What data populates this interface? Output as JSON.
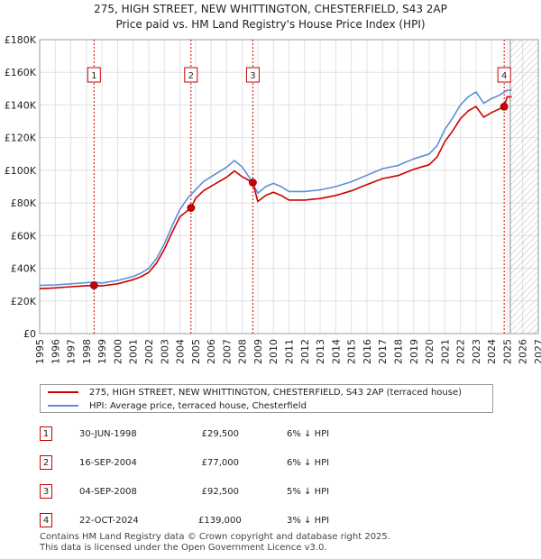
{
  "title_line1": "275, HIGH STREET, NEW WHITTINGTON, CHESTERFIELD, S43 2AP",
  "title_line2": "Price paid vs. HM Land Registry's House Price Index (HPI)",
  "legend": {
    "property_label": "275, HIGH STREET, NEW WHITTINGTON, CHESTERFIELD, S43 2AP (terraced house)",
    "hpi_label": "HPI: Average price, terraced house, Chesterfield"
  },
  "colors": {
    "property": "#cc0000",
    "hpi": "#5b8fd6",
    "shade": "#dde6f5",
    "grid": "#e2e2e2"
  },
  "sales": [
    {
      "id": "1",
      "date": "30-JUN-1998",
      "price": "£29,500",
      "hpi_diff": "6% ↓ HPI"
    },
    {
      "id": "2",
      "date": "16-SEP-2004",
      "price": "£77,000",
      "hpi_diff": "6% ↓ HPI"
    },
    {
      "id": "3",
      "date": "04-SEP-2008",
      "price": "£92,500",
      "hpi_diff": "5% ↓ HPI"
    },
    {
      "id": "4",
      "date": "22-OCT-2024",
      "price": "£139,000",
      "hpi_diff": "3% ↓ HPI"
    }
  ],
  "footer_line1": "Contains HM Land Registry data © Crown copyright and database right 2025.",
  "footer_line2": "This data is licensed under the Open Government Licence v3.0.",
  "chart_data": {
    "type": "line",
    "title": "275, HIGH STREET, NEW WHITTINGTON, CHESTERFIELD, S43 2AP — Price paid vs. HM Land Registry's House Price Index (HPI)",
    "xlabel": "",
    "ylabel": "",
    "xlim": [
      1995,
      2027
    ],
    "ylim": [
      0,
      180000
    ],
    "y_ticks": [
      0,
      20000,
      40000,
      60000,
      80000,
      100000,
      120000,
      140000,
      160000,
      180000
    ],
    "y_tick_labels": [
      "£0",
      "£20K",
      "£40K",
      "£60K",
      "£80K",
      "£100K",
      "£120K",
      "£140K",
      "£160K",
      "£180K"
    ],
    "x_ticks": [
      1995,
      1996,
      1997,
      1998,
      1999,
      2000,
      2001,
      2002,
      2003,
      2004,
      2005,
      2006,
      2007,
      2008,
      2009,
      2010,
      2011,
      2012,
      2013,
      2014,
      2015,
      2016,
      2017,
      2018,
      2019,
      2020,
      2021,
      2022,
      2023,
      2024,
      2025,
      2026,
      2027
    ],
    "future_hatch_from": 2025.2,
    "series": [
      {
        "name": "HPI: Average price, terraced house, Chesterfield",
        "x": [
          1995,
          1996,
          1997,
          1998,
          1998.5,
          1999,
          2000,
          2001,
          2001.5,
          2002,
          2002.5,
          2003,
          2003.5,
          2004,
          2004.5,
          2005,
          2005.5,
          2006,
          2006.5,
          2007,
          2007.5,
          2008,
          2008.5,
          2009,
          2009.5,
          2010,
          2010.5,
          2011,
          2012,
          2013,
          2014,
          2015,
          2016,
          2017,
          2018,
          2019,
          2020,
          2020.5,
          2021,
          2021.5,
          2022,
          2022.5,
          2023,
          2023.5,
          2024,
          2024.5,
          2025,
          2025.3
        ],
        "y": [
          29500,
          29800,
          30500,
          31200,
          31500,
          31000,
          32500,
          35000,
          37000,
          40000,
          46000,
          55000,
          66000,
          76000,
          83000,
          88000,
          93000,
          96000,
          99000,
          102000,
          106000,
          102000,
          95000,
          86000,
          90000,
          92000,
          90000,
          87000,
          87000,
          88000,
          90000,
          93000,
          97000,
          101000,
          103000,
          107000,
          110000,
          115000,
          125000,
          132000,
          140000,
          145000,
          148000,
          141000,
          144000,
          146000,
          149000,
          149000
        ]
      },
      {
        "name": "275, HIGH STREET, NEW WHITTINGTON, CHESTERFIELD, S43 2AP (terraced house)",
        "x": [
          1995,
          1996,
          1997,
          1998,
          1998.5,
          1999,
          2000,
          2001,
          2001.5,
          2002,
          2002.5,
          2003,
          2003.5,
          2004,
          2004.71,
          2005,
          2005.5,
          2006,
          2006.5,
          2007,
          2007.5,
          2008,
          2008.68,
          2009,
          2009.5,
          2010,
          2010.5,
          2011,
          2012,
          2013,
          2014,
          2015,
          2016,
          2017,
          2018,
          2019,
          2020,
          2020.5,
          2021,
          2021.5,
          2022,
          2022.5,
          2023,
          2023.5,
          2024,
          2024.81,
          2025,
          2025.3
        ],
        "y": [
          27500,
          28000,
          28700,
          29300,
          29500,
          29200,
          30500,
          33000,
          34800,
          37500,
          43200,
          51700,
          62000,
          71500,
          77000,
          82700,
          87400,
          90200,
          93000,
          95800,
          99600,
          96000,
          92500,
          80900,
          84600,
          86500,
          84600,
          81800,
          81800,
          82700,
          84600,
          87400,
          91200,
          94900,
          96800,
          100600,
          103400,
          108100,
          117500,
          124100,
          131600,
          136300,
          139100,
          132500,
          135400,
          139000,
          145000,
          145000
        ]
      }
    ],
    "sales": [
      {
        "label": "1",
        "x": 1998.49,
        "y": 29500
      },
      {
        "label": "2",
        "x": 2004.71,
        "y": 77000
      },
      {
        "label": "3",
        "x": 2008.68,
        "y": 92500
      },
      {
        "label": "4",
        "x": 2024.81,
        "y": 139000
      }
    ]
  }
}
